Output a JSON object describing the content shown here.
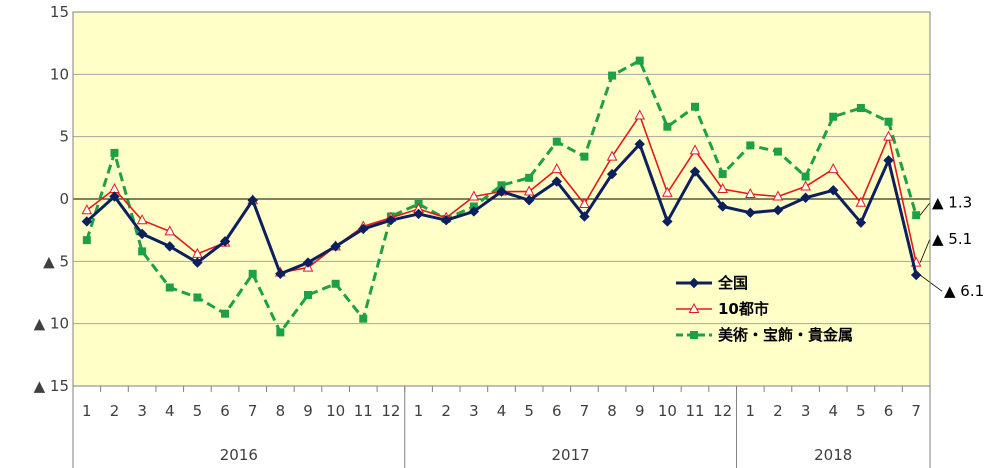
{
  "chart_data": {
    "type": "line",
    "ylim": [
      -15,
      15
    ],
    "yticks": [
      {
        "value": 15,
        "label": "15"
      },
      {
        "value": 10,
        "label": "10"
      },
      {
        "value": 5,
        "label": "5"
      },
      {
        "value": 0,
        "label": "0"
      },
      {
        "value": -5,
        "label": "▲ 5"
      },
      {
        "value": -10,
        "label": "▲ 10"
      },
      {
        "value": -15,
        "label": "▲ 15"
      }
    ],
    "categories": [
      "1",
      "2",
      "3",
      "4",
      "5",
      "6",
      "7",
      "8",
      "9",
      "10",
      "11",
      "12",
      "1",
      "2",
      "3",
      "4",
      "5",
      "6",
      "7",
      "8",
      "9",
      "10",
      "11",
      "12",
      "1",
      "2",
      "3",
      "4",
      "5",
      "6",
      "7"
    ],
    "year_groups": [
      {
        "label": "2016",
        "count": 12
      },
      {
        "label": "2017",
        "count": 12
      },
      {
        "label": "2018",
        "count": 7
      }
    ],
    "grid": "horizontal",
    "legend_position": "lower-right inside plot",
    "series": [
      {
        "name": "全国",
        "color": "#0d1f5c",
        "marker": "diamond",
        "dash": "solid",
        "values": [
          -1.8,
          0.2,
          -2.8,
          -3.8,
          -5.1,
          -3.4,
          -0.1,
          -6.0,
          -5.1,
          -3.8,
          -2.4,
          -1.7,
          -1.2,
          -1.7,
          -1.0,
          0.6,
          -0.1,
          1.4,
          -1.4,
          2.0,
          4.4,
          -1.8,
          2.2,
          -0.6,
          -1.1,
          -0.9,
          0.1,
          0.7,
          -1.9,
          3.1,
          -6.1
        ]
      },
      {
        "name": "10都市",
        "color": "#e31a1c",
        "marker": "triangle",
        "dash": "solid",
        "values": [
          -0.9,
          0.8,
          -1.7,
          -2.6,
          -4.4,
          -3.5,
          -0.1,
          -5.9,
          -5.5,
          -3.8,
          -2.2,
          -1.5,
          -0.8,
          -1.5,
          0.2,
          0.6,
          0.6,
          2.4,
          -0.4,
          3.4,
          6.7,
          0.5,
          3.9,
          0.8,
          0.4,
          0.2,
          1.0,
          2.4,
          -0.3,
          5.0,
          -5.1
        ]
      },
      {
        "name": "美術・宝飾・貴金属",
        "color": "#1fa046",
        "marker": "square",
        "dash": "dashed",
        "values": [
          -3.3,
          3.7,
          -4.2,
          -7.1,
          -7.9,
          -9.2,
          -6.0,
          -10.7,
          -7.7,
          -6.8,
          -9.6,
          -1.4,
          -0.4,
          -1.6,
          -0.6,
          1.1,
          1.7,
          4.6,
          3.4,
          9.9,
          11.1,
          5.8,
          7.4,
          2.0,
          4.3,
          3.8,
          1.8,
          6.6,
          7.3,
          6.2,
          -1.3
        ]
      }
    ],
    "annotations": [
      {
        "label": "▲ 1.3",
        "series": 2
      },
      {
        "label": "▲ 5.1",
        "series": 1
      },
      {
        "label": "▲ 6.1",
        "series": 0
      }
    ]
  }
}
